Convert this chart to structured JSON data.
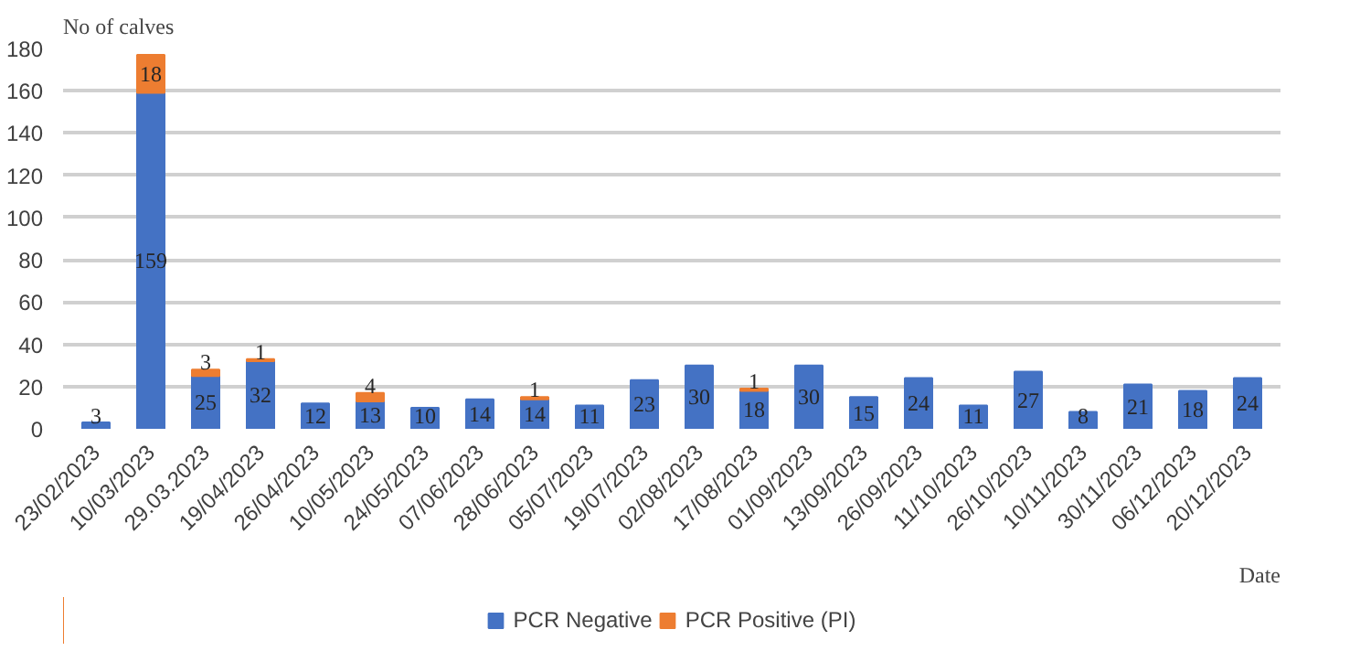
{
  "chart_data": {
    "type": "bar",
    "stacked": true,
    "xlabel": "Date",
    "ylabel": "No of calves",
    "categories": [
      "23/02/2023",
      "10/03/2023",
      "29.03.2023",
      "19/04/2023",
      "26/04/2023",
      "10/05/2023",
      "24/05/2023",
      "07/06/2023",
      "28/06/2023",
      "05/07/2023",
      "19/07/2023",
      "02/08/2023",
      "17/08/2023",
      "01/09/2023",
      "13/09/2023",
      "26/09/2023",
      "11/10/2023",
      "26/10/2023",
      "10/11/2023",
      "30/11/2023",
      "06/12/2023",
      "20/12/2023"
    ],
    "series": [
      {
        "name": "PCR Negative",
        "color": "#4472c4",
        "values": [
          3,
          159,
          25,
          32,
          12,
          13,
          10,
          14,
          14,
          11,
          23,
          30,
          18,
          30,
          15,
          24,
          11,
          27,
          8,
          21,
          18,
          24
        ]
      },
      {
        "name": "PCR Positive (PI)",
        "color": "#ed7d31",
        "values": [
          null,
          18,
          3,
          1,
          null,
          4,
          null,
          null,
          1,
          null,
          null,
          null,
          1,
          null,
          null,
          null,
          null,
          null,
          null,
          null,
          null,
          null
        ]
      }
    ],
    "ylim": [
      0,
      180
    ],
    "yticks": [
      0,
      20,
      40,
      60,
      80,
      100,
      120,
      140,
      160,
      180
    ],
    "grid": "y",
    "legend": "bottom",
    "data_labels": true
  }
}
